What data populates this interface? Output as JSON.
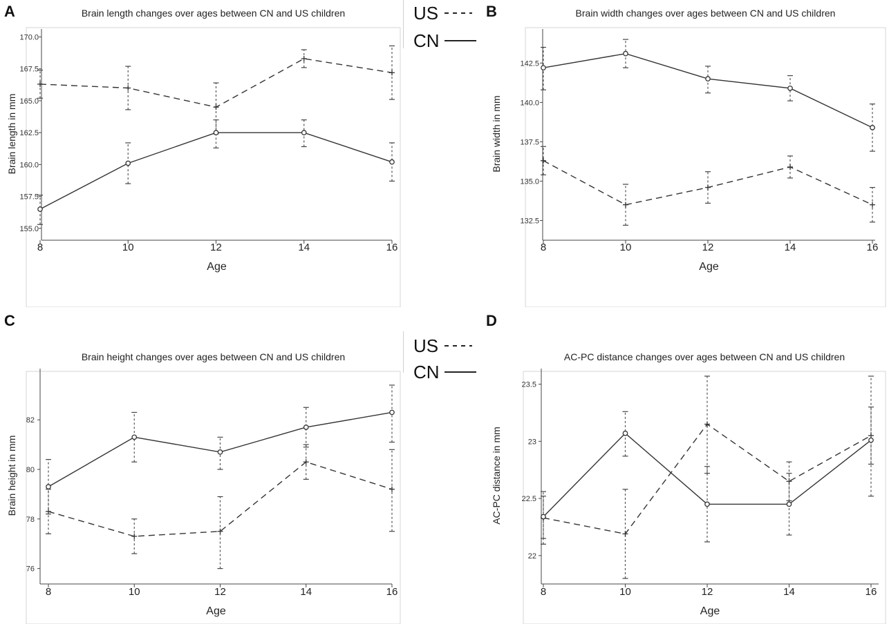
{
  "figure": {
    "panels": [
      "A",
      "B",
      "C",
      "D"
    ],
    "legend": {
      "us_label": "US",
      "cn_label": "CN"
    }
  },
  "chart_data": [
    {
      "type": "line",
      "panel": "A",
      "title": "Brain length changes over ages between CN and US children",
      "xlabel": "Age",
      "ylabel": "Brain length in mm",
      "x": [
        8,
        10,
        12,
        14,
        16
      ],
      "xticks": [
        "8",
        "10",
        "12",
        "14",
        "16"
      ],
      "ylim": [
        154.5,
        170.3
      ],
      "yticks": [
        155.0,
        157.5,
        160.0,
        162.5,
        165.0,
        167.5,
        170.0
      ],
      "ytick_labels": [
        "155.0",
        "157.5",
        "160.0",
        "162.5",
        "165.0",
        "167.5",
        "170.0"
      ],
      "series": [
        {
          "name": "US",
          "style": "dashed",
          "marker": "plus",
          "values": [
            166.3,
            166.0,
            164.5,
            168.3,
            167.2
          ],
          "err_low": [
            165.2,
            164.3,
            162.4,
            167.6,
            165.1
          ],
          "err_high": [
            167.4,
            167.7,
            166.4,
            169.0,
            169.3
          ]
        },
        {
          "name": "CN",
          "style": "solid",
          "marker": "circle",
          "values": [
            156.5,
            160.1,
            162.5,
            162.5,
            160.2
          ],
          "err_low": [
            155.3,
            158.5,
            161.3,
            161.4,
            158.7
          ],
          "err_high": [
            157.6,
            161.7,
            163.5,
            163.5,
            161.7
          ]
        }
      ]
    },
    {
      "type": "line",
      "panel": "B",
      "title": "Brain width changes over ages between CN and US children",
      "xlabel": "Age",
      "ylabel": "Brain width in mm",
      "x": [
        8,
        10,
        12,
        14,
        16
      ],
      "xticks": [
        "8",
        "10",
        "12",
        "14",
        "16"
      ],
      "ylim": [
        131.6,
        144.4
      ],
      "yticks": [
        132.5,
        135.0,
        137.5,
        140.0,
        142.5
      ],
      "ytick_labels": [
        "132.5",
        "135.0",
        "137.5",
        "140.0",
        "142.5"
      ],
      "series": [
        {
          "name": "US",
          "style": "dashed",
          "marker": "plus",
          "values": [
            136.3,
            133.5,
            134.6,
            135.9,
            133.5
          ],
          "err_low": [
            135.4,
            132.2,
            133.6,
            135.2,
            132.4
          ],
          "err_high": [
            137.2,
            134.8,
            135.6,
            136.6,
            134.6
          ]
        },
        {
          "name": "CN",
          "style": "solid",
          "marker": "circle",
          "values": [
            142.2,
            143.1,
            141.5,
            140.9,
            138.4
          ],
          "err_low": [
            140.8,
            142.2,
            140.6,
            140.1,
            136.9
          ],
          "err_high": [
            143.5,
            144.0,
            142.3,
            141.7,
            139.9
          ]
        }
      ]
    },
    {
      "type": "line",
      "panel": "C",
      "title": "Brain height changes over ages between CN and US children",
      "xlabel": "Age",
      "ylabel": "Brain height in mm",
      "x": [
        8,
        10,
        12,
        14,
        16
      ],
      "xticks": [
        "8",
        "10",
        "12",
        "14",
        "16"
      ],
      "ylim": [
        75.6,
        83.9
      ],
      "yticks": [
        76,
        78,
        80,
        82
      ],
      "ytick_labels": [
        "76",
        "78",
        "80",
        "82"
      ],
      "series": [
        {
          "name": "US",
          "style": "dashed",
          "marker": "plus",
          "values": [
            78.3,
            77.3,
            77.5,
            80.3,
            79.2
          ],
          "err_low": [
            77.4,
            76.6,
            76.0,
            79.6,
            77.5
          ],
          "err_high": [
            79.2,
            78.0,
            78.9,
            81.0,
            80.8
          ]
        },
        {
          "name": "CN",
          "style": "solid",
          "marker": "circle",
          "values": [
            79.3,
            81.3,
            80.7,
            81.7,
            82.3
          ],
          "err_low": [
            78.2,
            80.3,
            80.0,
            80.9,
            81.1
          ],
          "err_high": [
            80.4,
            82.3,
            81.3,
            82.5,
            83.4
          ]
        }
      ]
    },
    {
      "type": "line",
      "panel": "D",
      "title": "AC-PC distance changes over ages between CN and US children",
      "xlabel": "Age",
      "ylabel": "AC-PC distance in mm",
      "x": [
        8,
        10,
        12,
        14,
        16
      ],
      "xticks": [
        "8",
        "10",
        "12",
        "14",
        "16"
      ],
      "ylim": [
        21.8,
        23.6
      ],
      "yticks": [
        22.0,
        22.5,
        23.0,
        23.5
      ],
      "ytick_labels": [
        "22",
        "22.5",
        "23",
        "23.5"
      ],
      "series": [
        {
          "name": "US",
          "style": "dashed",
          "marker": "plus",
          "values": [
            22.33,
            22.19,
            23.15,
            22.65,
            23.05
          ],
          "err_low": [
            22.15,
            21.8,
            22.72,
            22.48,
            22.8
          ],
          "err_high": [
            22.52,
            22.58,
            23.57,
            22.82,
            23.3
          ]
        },
        {
          "name": "CN",
          "style": "solid",
          "marker": "circle",
          "values": [
            22.34,
            23.07,
            22.45,
            22.45,
            23.01
          ],
          "err_low": [
            22.1,
            22.87,
            22.12,
            22.18,
            22.52
          ],
          "err_high": [
            22.56,
            23.26,
            22.78,
            22.72,
            23.57
          ]
        }
      ]
    }
  ]
}
